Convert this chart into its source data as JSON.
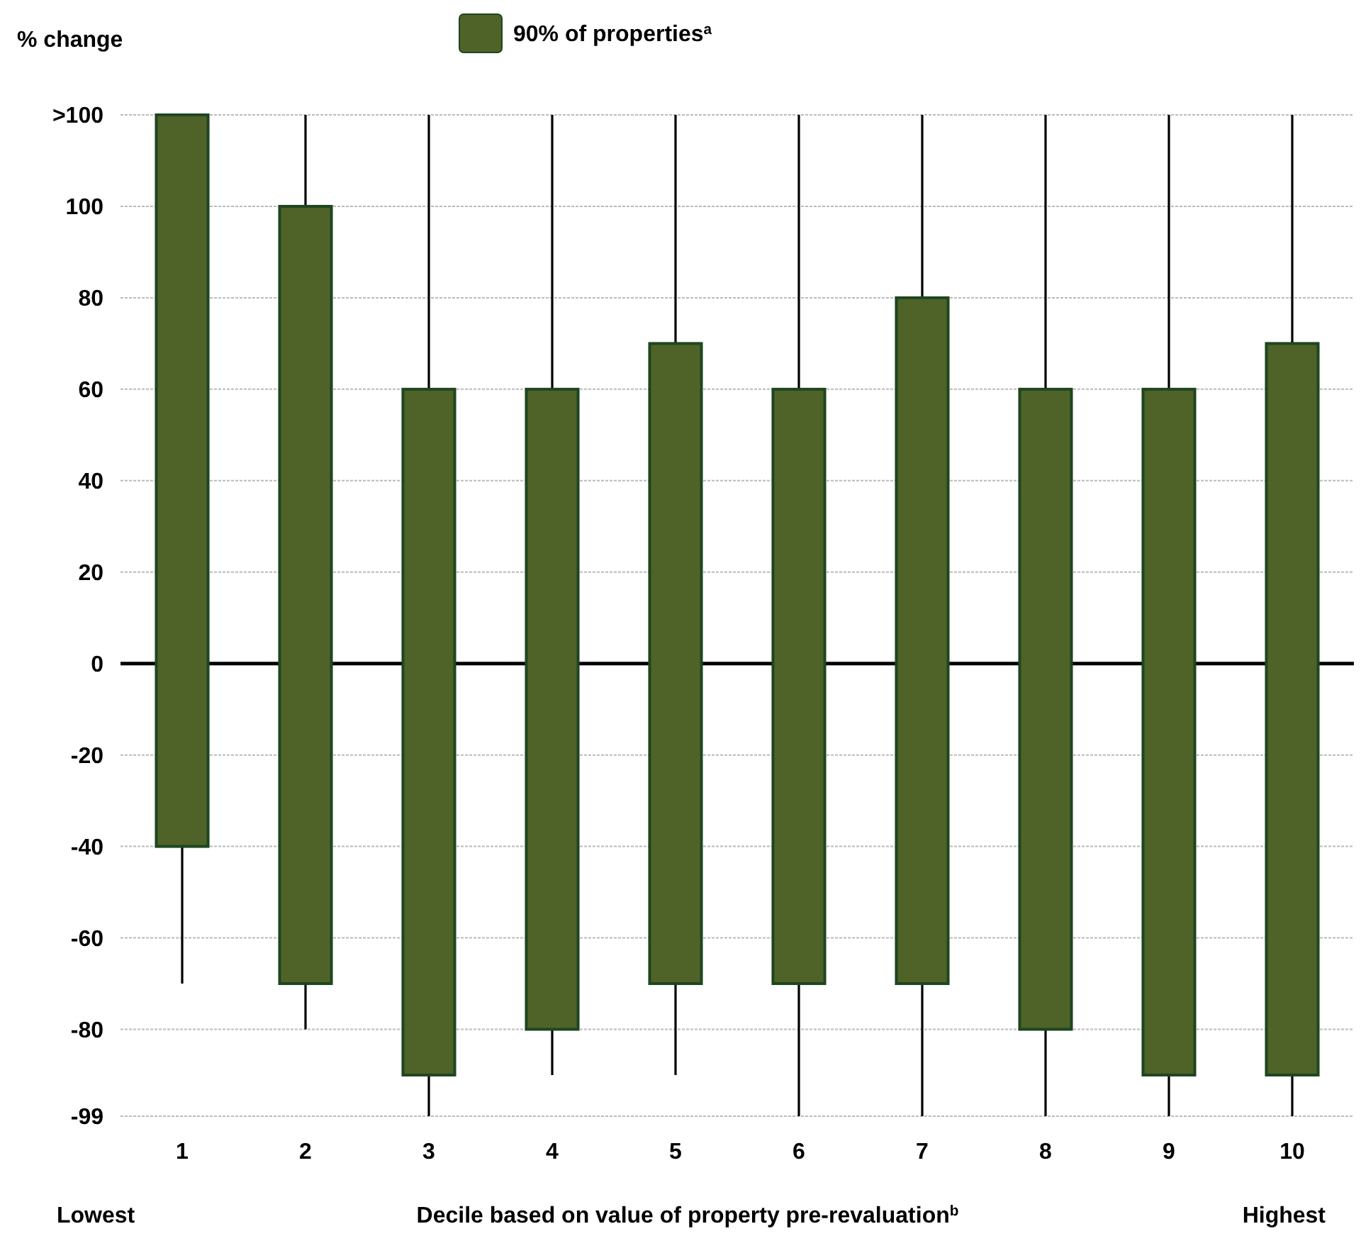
{
  "chart_data": {
    "type": "bar",
    "ylabel": "% change",
    "xlabel": "Decile based on value of property pre-revaluation$^{b}$",
    "categories": [
      "1",
      "2",
      "3",
      "4",
      "5",
      "6",
      "7",
      "8",
      "9",
      "10"
    ],
    "series": [
      {
        "color": "#000000",
        "base": [
          -70,
          -80,
          -99,
          -90,
          -90,
          -99,
          -99,
          -99,
          -99,
          -99
        ],
        "values": [
          30,
          10,
          9,
          10,
          20,
          29,
          29,
          19,
          9,
          9
        ]
      },
      {
        "color": "#000000",
        "base": [
          null,
          100,
          60,
          60,
          70,
          60,
          80,
          60,
          60,
          70
        ],
        "values": [
          null,
          20,
          60,
          60,
          50,
          60,
          40,
          60,
          60,
          50
        ]
      },
      {
        "name": "90% of properties$^{a}$",
        "color": "#4f6228",
        "base": [
          -40,
          -70,
          -90,
          -80,
          -70,
          -70,
          -70,
          -80,
          -90,
          -90
        ],
        "values": [
          160,
          170,
          150,
          140,
          140,
          130,
          150,
          140,
          150,
          160
        ]
      }
    ],
    "ylim": [
      -99,
      120
    ],
    "yticks": [
      -99,
      -80,
      -60,
      -40,
      -20,
      0,
      20,
      40,
      60,
      80,
      100,
      {
        "value": 120,
        "label": ">100"
      }
    ],
    "grid": "y",
    "legend": "top",
    "ref_lines": [
      {
        "axis": "y",
        "value": 0,
        "color": "#000000"
      }
    ],
    "annotations": [
      "Lowest",
      "Highest"
    ]
  }
}
